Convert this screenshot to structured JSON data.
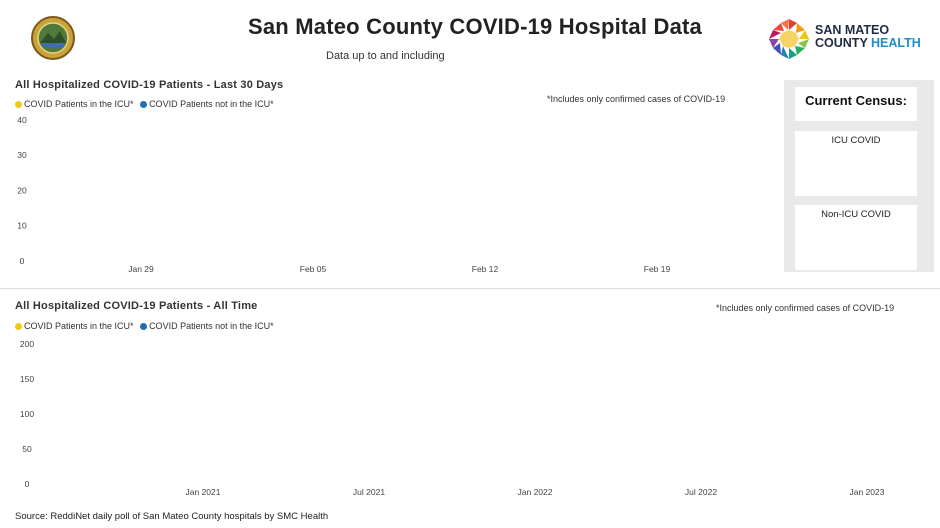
{
  "header": {
    "title": "San Mateo County COVID-19 Hospital Data",
    "subtitle": "Data up to and including",
    "brand_line1": "SAN MATEO",
    "brand_line2_a": "COUNTY ",
    "brand_line2_b": "HEALTH",
    "seal_icon": "county-seal",
    "logo_icon": "mosaic-health-logo"
  },
  "colors": {
    "icu": "#f2c811",
    "non_icu": "#1f6fb2",
    "panel_bg": "#e9e9e9",
    "brand_accent": "#1a8fc9"
  },
  "chart_data": [
    {
      "type": "bar",
      "title": "All Hospitalized COVID-19 Patients - Last 30 Days",
      "note": "*Includes only confirmed cases of COVID-19",
      "legend": [
        "COVID Patients in the ICU*",
        "COVID Patients not in the ICU*"
      ],
      "legend_placement": "top-left",
      "y_ticks": [
        "40",
        "30",
        "20",
        "10",
        "0"
      ],
      "ylim": [
        0,
        40
      ],
      "x_ticks": [
        "Jan 29",
        "Feb 05",
        "Feb 12",
        "Feb 19"
      ],
      "series": [
        {
          "name": "COVID Patients in the ICU*",
          "values": []
        },
        {
          "name": "COVID Patients not in the ICU*",
          "values": []
        }
      ]
    },
    {
      "type": "bar",
      "title": "All Hospitalized COVID-19 Patients - All Time",
      "note": "*Includes only confirmed cases of COVID-19",
      "legend": [
        "COVID Patients in the ICU*",
        "COVID Patients not in the ICU*"
      ],
      "legend_placement": "top-left",
      "y_ticks": [
        "200",
        "150",
        "100",
        "50",
        "0"
      ],
      "ylim": [
        0,
        200
      ],
      "x_ticks": [
        "Jan 2021",
        "Jul 2021",
        "Jan 2022",
        "Jul 2022",
        "Jan 2023"
      ],
      "series": [
        {
          "name": "COVID Patients in the ICU*",
          "values": []
        },
        {
          "name": "COVID Patients not in the ICU*",
          "values": []
        }
      ]
    }
  ],
  "census": {
    "title": "Current Census:",
    "icu_label": "ICU COVID",
    "non_icu_label": "Non-ICU COVID"
  },
  "footer": {
    "source": "Source: ReddiNet daily poll of San Mateo County hospitals by SMC Health"
  }
}
